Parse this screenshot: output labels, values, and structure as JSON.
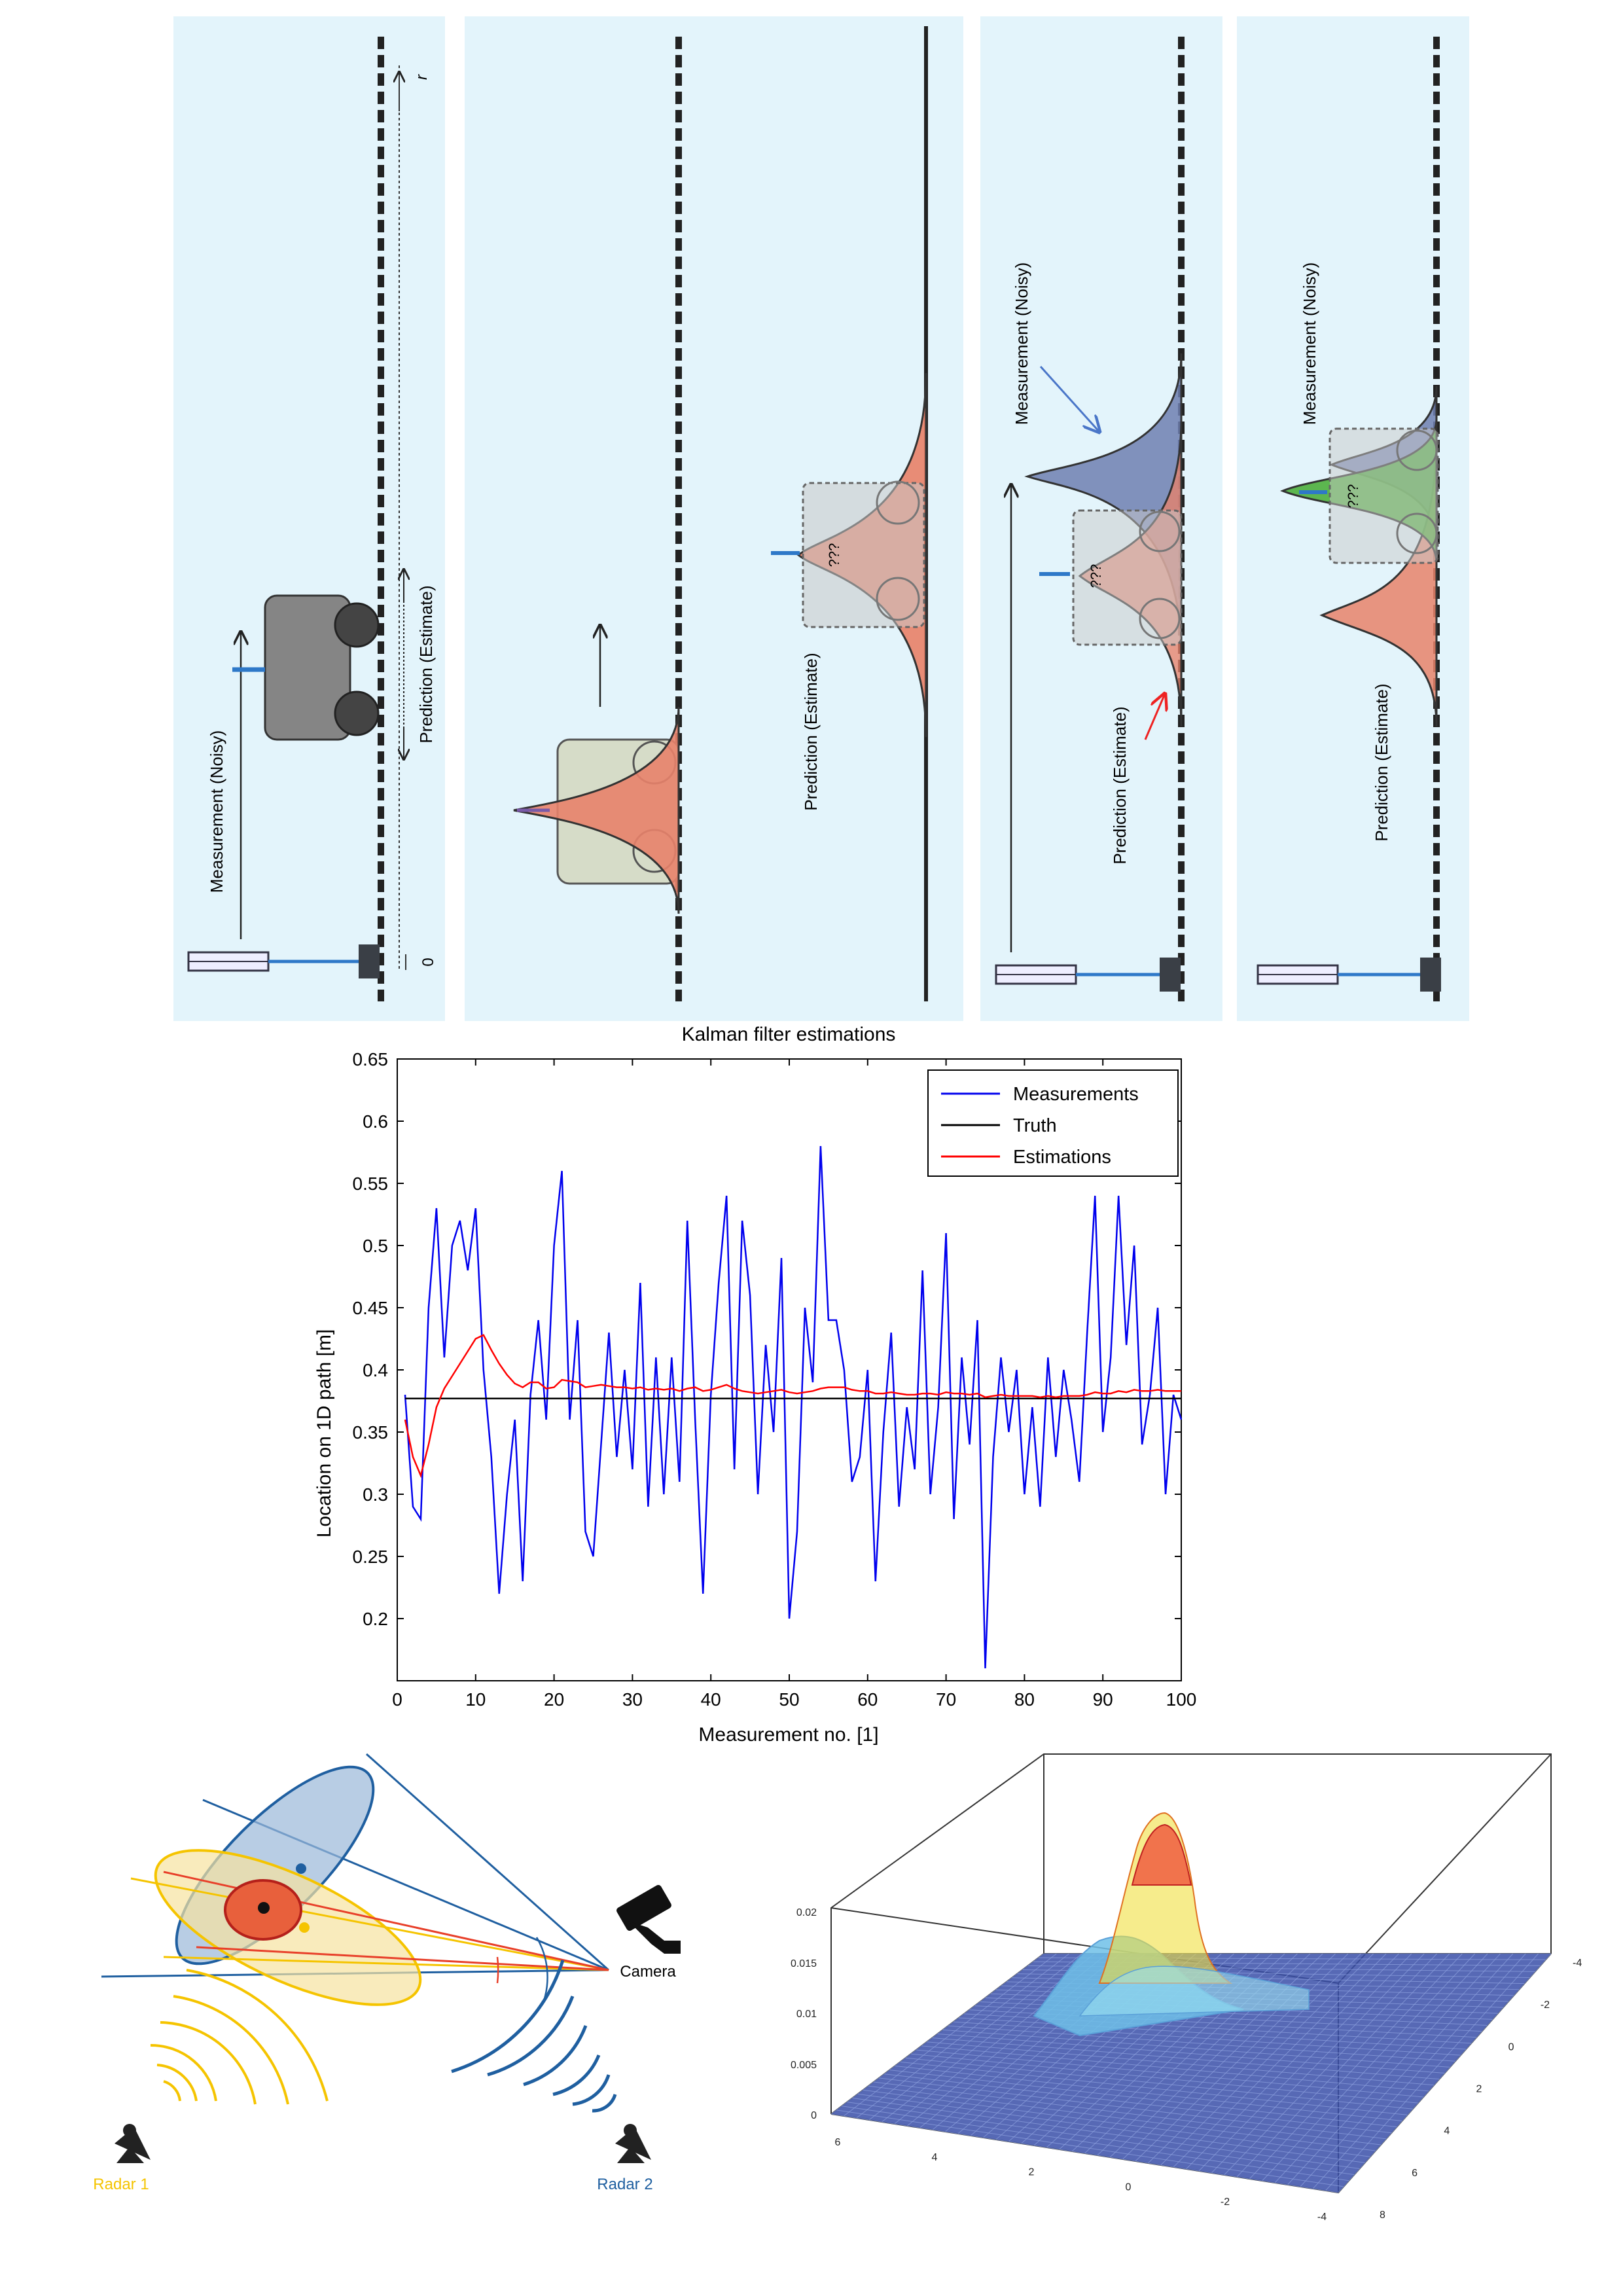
{
  "panels": {
    "p1": {
      "measurement": "Measurement (Noisy)",
      "prediction": "Prediction (Estimate)",
      "axis_start": "0",
      "axis_end": "r"
    },
    "p3": {
      "prediction": "Prediction (Estimate)",
      "unknown": "???"
    },
    "p4": {
      "measurement": "Measurement (Noisy)",
      "prediction": "Prediction (Estimate)",
      "unknown": "???"
    },
    "p5": {
      "measurement": "Measurement (Noisy)",
      "prediction": "Prediction (Estimate)",
      "unknown": "???"
    }
  },
  "fusion": {
    "camera": "Camera",
    "radar1": "Radar 1",
    "radar2": "Radar 2",
    "colors": {
      "radar1": "#f5c400",
      "radar2": "#1f5fa0",
      "camera_ray": "#e8402a",
      "ellipse_blue": "#9ab8d8",
      "ellipse_yellow": "#f7e3a0",
      "fused": "#e8603c"
    }
  },
  "surface": {
    "z_ticks": [
      "0",
      "0.005",
      "0.01",
      "0.015",
      "0.02"
    ],
    "x_ticks": [
      "6",
      "4",
      "2",
      "0",
      "-2",
      "-4"
    ],
    "y_ticks": [
      "-4",
      "-2",
      "0",
      "2",
      "4",
      "6",
      "8"
    ]
  },
  "chart_data": {
    "type": "line",
    "title": "Kalman filter estimations",
    "xlabel": "Measurement no. [1]",
    "ylabel": "Location on 1D path [m]",
    "xlim": [
      0,
      100
    ],
    "ylim": [
      0.15,
      0.65
    ],
    "x_ticks": [
      "0",
      "10",
      "20",
      "30",
      "40",
      "50",
      "60",
      "70",
      "80",
      "90",
      "100"
    ],
    "y_ticks": [
      "0.2",
      "0.25",
      "0.3",
      "0.35",
      "0.4",
      "0.45",
      "0.5",
      "0.55",
      "0.6",
      "0.65"
    ],
    "legend_position": "top-right",
    "x": [
      1,
      2,
      3,
      4,
      5,
      6,
      7,
      8,
      9,
      10,
      11,
      12,
      13,
      14,
      15,
      16,
      17,
      18,
      19,
      20,
      21,
      22,
      23,
      24,
      25,
      26,
      27,
      28,
      29,
      30,
      31,
      32,
      33,
      34,
      35,
      36,
      37,
      38,
      39,
      40,
      41,
      42,
      43,
      44,
      45,
      46,
      47,
      48,
      49,
      50,
      51,
      52,
      53,
      54,
      55,
      56,
      57,
      58,
      59,
      60,
      61,
      62,
      63,
      64,
      65,
      66,
      67,
      68,
      69,
      70,
      71,
      72,
      73,
      74,
      75,
      76,
      77,
      78,
      79,
      80,
      81,
      82,
      83,
      84,
      85,
      86,
      87,
      88,
      89,
      90,
      91,
      92,
      93,
      94,
      95,
      96,
      97,
      98,
      99,
      100
    ],
    "series": [
      {
        "name": "Measurements",
        "color": "#0000ee",
        "values": [
          0.38,
          0.29,
          0.28,
          0.45,
          0.53,
          0.41,
          0.5,
          0.52,
          0.48,
          0.53,
          0.4,
          0.33,
          0.22,
          0.3,
          0.36,
          0.23,
          0.38,
          0.44,
          0.36,
          0.5,
          0.56,
          0.36,
          0.44,
          0.27,
          0.25,
          0.34,
          0.43,
          0.33,
          0.4,
          0.32,
          0.47,
          0.29,
          0.41,
          0.3,
          0.41,
          0.31,
          0.52,
          0.36,
          0.22,
          0.38,
          0.47,
          0.54,
          0.32,
          0.52,
          0.46,
          0.3,
          0.42,
          0.35,
          0.49,
          0.2,
          0.27,
          0.45,
          0.39,
          0.58,
          0.44,
          0.44,
          0.4,
          0.31,
          0.33,
          0.4,
          0.23,
          0.35,
          0.43,
          0.29,
          0.37,
          0.32,
          0.48,
          0.3,
          0.37,
          0.51,
          0.28,
          0.41,
          0.34,
          0.44,
          0.16,
          0.33,
          0.41,
          0.35,
          0.4,
          0.3,
          0.37,
          0.29,
          0.41,
          0.33,
          0.4,
          0.36,
          0.31,
          0.43,
          0.54,
          0.35,
          0.41,
          0.54,
          0.42,
          0.5,
          0.34,
          0.38,
          0.45,
          0.3,
          0.38,
          0.36
        ]
      },
      {
        "name": "Truth",
        "color": "#000000",
        "values": [
          0.377,
          0.377,
          0.377,
          0.377,
          0.377,
          0.377,
          0.377,
          0.377,
          0.377,
          0.377,
          0.377,
          0.377,
          0.377,
          0.377,
          0.377,
          0.377,
          0.377,
          0.377,
          0.377,
          0.377,
          0.377,
          0.377,
          0.377,
          0.377,
          0.377,
          0.377,
          0.377,
          0.377,
          0.377,
          0.377,
          0.377,
          0.377,
          0.377,
          0.377,
          0.377,
          0.377,
          0.377,
          0.377,
          0.377,
          0.377,
          0.377,
          0.377,
          0.377,
          0.377,
          0.377,
          0.377,
          0.377,
          0.377,
          0.377,
          0.377,
          0.377,
          0.377,
          0.377,
          0.377,
          0.377,
          0.377,
          0.377,
          0.377,
          0.377,
          0.377,
          0.377,
          0.377,
          0.377,
          0.377,
          0.377,
          0.377,
          0.377,
          0.377,
          0.377,
          0.377,
          0.377,
          0.377,
          0.377,
          0.377,
          0.377,
          0.377,
          0.377,
          0.377,
          0.377,
          0.377,
          0.377,
          0.377,
          0.377,
          0.377,
          0.377,
          0.377,
          0.377,
          0.377,
          0.377,
          0.377,
          0.377,
          0.377,
          0.377,
          0.377,
          0.377,
          0.377,
          0.377,
          0.377,
          0.377,
          0.377
        ]
      },
      {
        "name": "Estimations",
        "color": "#ff0000",
        "values": [
          0.36,
          0.33,
          0.315,
          0.34,
          0.37,
          0.385,
          0.395,
          0.405,
          0.415,
          0.425,
          0.428,
          0.416,
          0.405,
          0.396,
          0.389,
          0.386,
          0.39,
          0.39,
          0.385,
          0.386,
          0.392,
          0.391,
          0.39,
          0.386,
          0.387,
          0.388,
          0.387,
          0.386,
          0.386,
          0.385,
          0.386,
          0.384,
          0.385,
          0.384,
          0.385,
          0.383,
          0.385,
          0.386,
          0.383,
          0.384,
          0.386,
          0.388,
          0.385,
          0.383,
          0.382,
          0.381,
          0.382,
          0.383,
          0.384,
          0.382,
          0.381,
          0.382,
          0.383,
          0.385,
          0.386,
          0.386,
          0.386,
          0.384,
          0.383,
          0.383,
          0.381,
          0.381,
          0.382,
          0.381,
          0.38,
          0.38,
          0.381,
          0.381,
          0.38,
          0.382,
          0.381,
          0.381,
          0.38,
          0.381,
          0.378,
          0.379,
          0.38,
          0.379,
          0.379,
          0.379,
          0.379,
          0.378,
          0.379,
          0.378,
          0.379,
          0.379,
          0.379,
          0.38,
          0.382,
          0.381,
          0.381,
          0.383,
          0.382,
          0.384,
          0.383,
          0.383,
          0.384,
          0.383,
          0.383,
          0.383
        ]
      }
    ]
  }
}
